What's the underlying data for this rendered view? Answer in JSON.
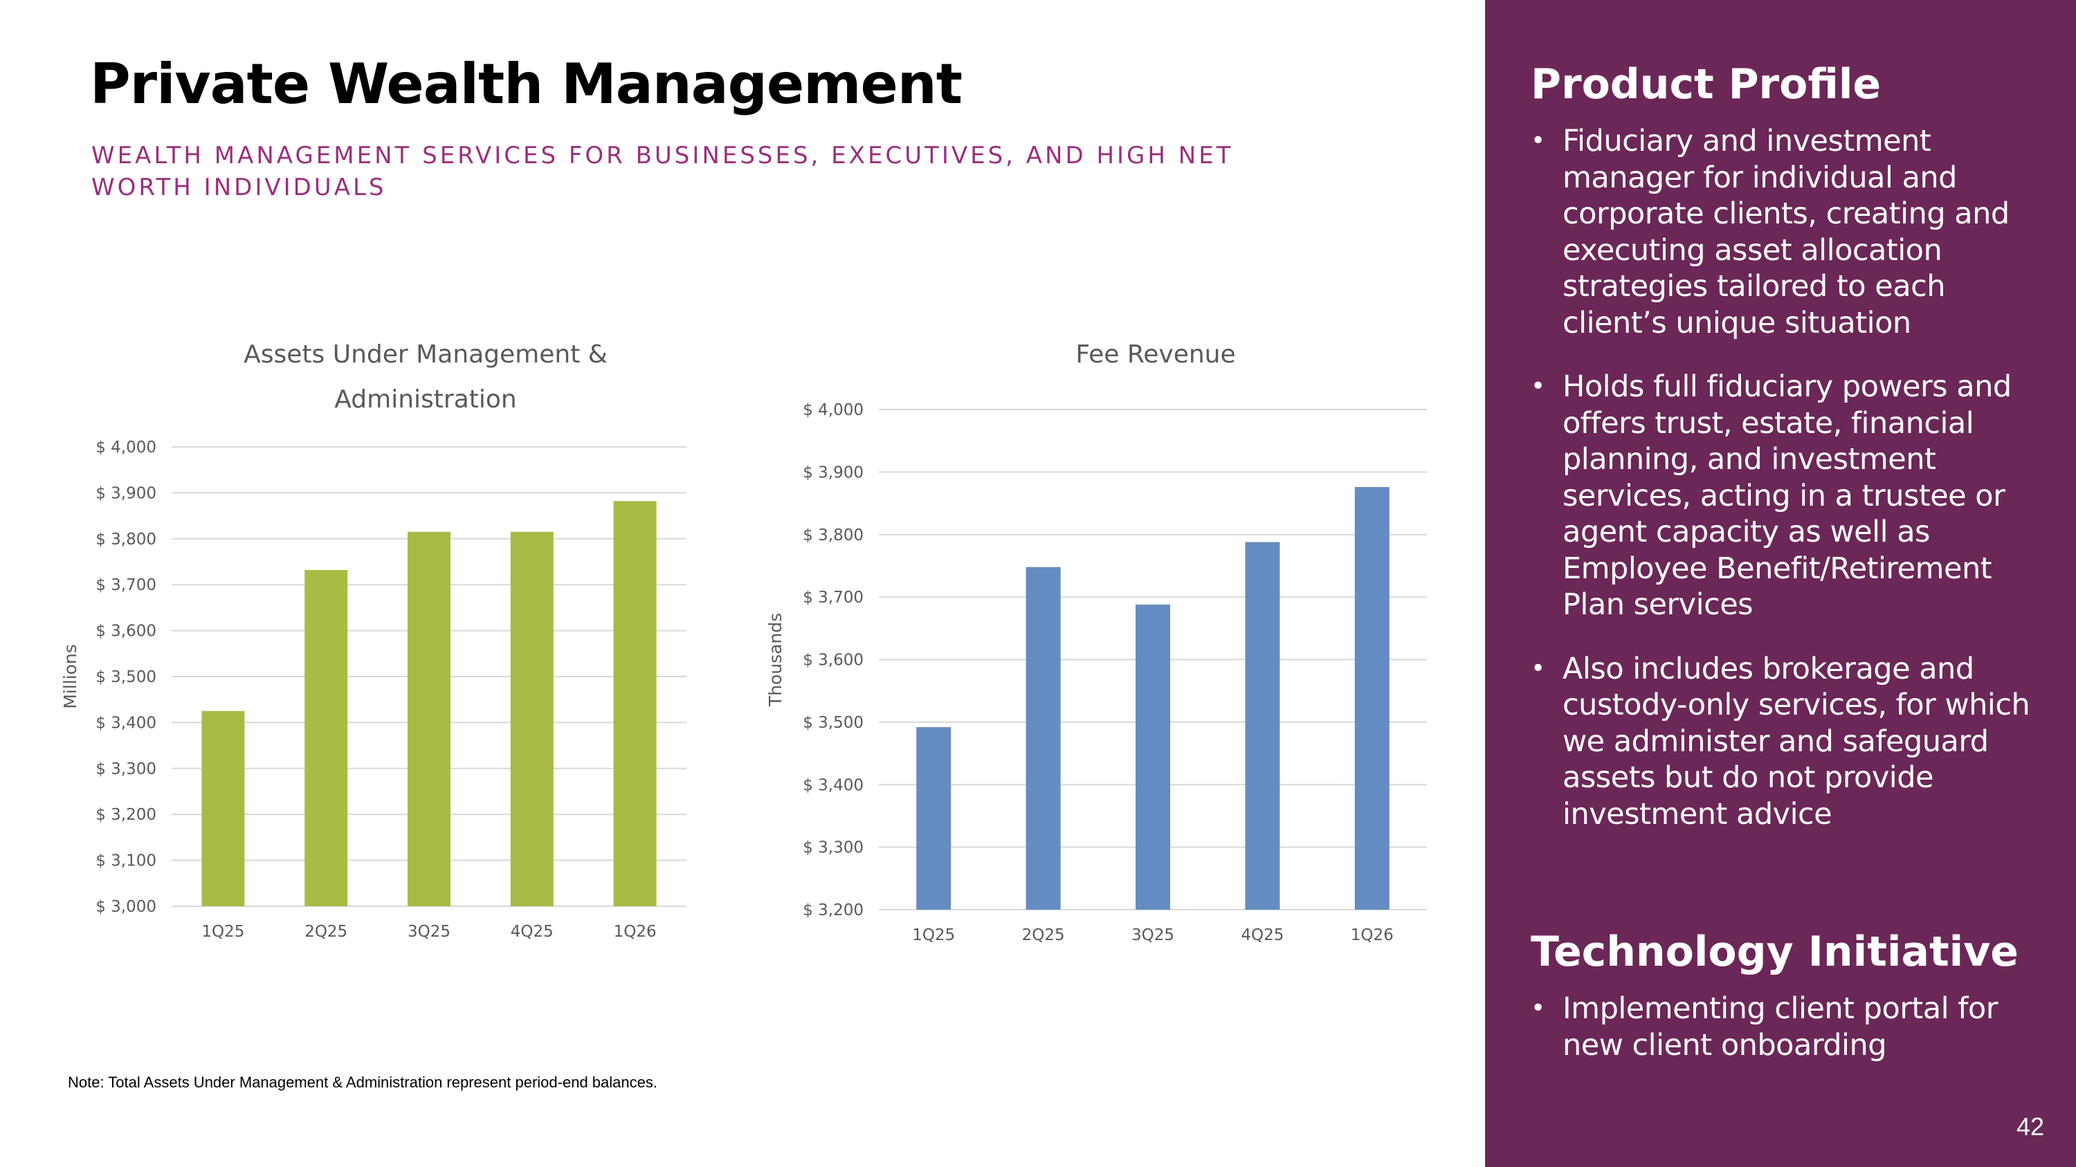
{
  "header": {
    "title": "Private Wealth Management",
    "subtitle": "WEALTH MANAGEMENT SERVICES FOR BUSINESSES, EXECUTIVES, AND HIGH NET WORTH INDIVIDUALS"
  },
  "colors": {
    "panel_bg": "#6b2757",
    "subtitle": "#9b2f7d",
    "aum_bar": "#a9bb44",
    "fee_bar": "#658cc0"
  },
  "chart_data": [
    {
      "type": "bar",
      "title": "Assets Under Management & Administration",
      "categories": [
        "1Q25",
        "2Q25",
        "3Q25",
        "4Q25",
        "1Q26"
      ],
      "values": [
        3425,
        3732,
        3815,
        3815,
        3882
      ],
      "ylabel": "Millions",
      "ylim": [
        3000,
        4000
      ],
      "yticks": [
        3000,
        3100,
        3200,
        3300,
        3400,
        3500,
        3600,
        3700,
        3800,
        3900,
        4000
      ],
      "tick_prefix": "$ ",
      "grid": true,
      "bar_color": "#a9bb44"
    },
    {
      "type": "bar",
      "title": "Fee Revenue",
      "categories": [
        "1Q25",
        "2Q25",
        "3Q25",
        "4Q25",
        "1Q26"
      ],
      "values": [
        3492,
        3748,
        3688,
        3788,
        3876
      ],
      "ylabel": "Thousands",
      "ylim": [
        3200,
        4000
      ],
      "yticks": [
        3200,
        3300,
        3400,
        3500,
        3600,
        3700,
        3800,
        3900,
        4000
      ],
      "tick_prefix": "$ ",
      "grid": true,
      "bar_color": "#658cc0"
    }
  ],
  "note": "Note: Total Assets Under Management & Administration represent period-end balances.",
  "panel": {
    "profile_heading": "Product Profile",
    "profile_items": [
      "Fiduciary and investment manager for individual and corporate clients, creating and executing asset allocation strategies tailored to each client’s unique situation",
      "Holds full fiduciary powers and offers trust, estate, financial planning, and investment services, acting in a trustee or agent capacity as well as Employee Benefit/Retirement Plan services",
      "Also includes brokerage and custody-only services, for which we administer and safeguard assets but do not provide investment advice"
    ],
    "tech_heading": "Technology Initiative",
    "tech_items": [
      "Implementing client portal for new client onboarding"
    ]
  },
  "page_number": "42"
}
